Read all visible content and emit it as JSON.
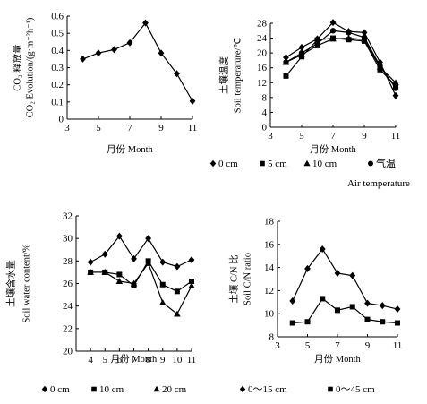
{
  "chart_data": [
    {
      "type": "line",
      "ylabel_top": "CO₂ 释放量",
      "ylabel_bottom": "CO₂ Evolution/(g·m⁻²h⁻¹)",
      "xlabel": "月份  Month",
      "xlim": [
        3,
        11
      ],
      "ylim": [
        0,
        0.6
      ],
      "xticks": [
        3,
        5,
        7,
        9,
        11
      ],
      "yticks": [
        0,
        0.1,
        0.2,
        0.3,
        0.4,
        0.5,
        0.6
      ],
      "ytick_labels": [
        "0",
        "0.1",
        "0.2",
        "0.3",
        "0.4",
        "0.5",
        "0.6"
      ],
      "legend_position": "none",
      "series": [
        {
          "name": "",
          "marker": "diamond",
          "x": [
            4,
            5,
            6,
            7,
            8,
            9,
            10,
            11
          ],
          "values": [
            0.35,
            0.385,
            0.405,
            0.445,
            0.56,
            0.385,
            0.265,
            0.105
          ]
        }
      ]
    },
    {
      "type": "line",
      "ylabel_top": "土壤温度",
      "ylabel_bottom": "Soil temperature/℃",
      "xlabel": "月份  Month",
      "xlim": [
        3,
        11
      ],
      "ylim": [
        0,
        28
      ],
      "xticks": [
        3,
        5,
        7,
        9,
        11
      ],
      "yticks": [
        0,
        4,
        8,
        12,
        16,
        20,
        24,
        28
      ],
      "ytick_labels": [
        "0",
        "4",
        "8",
        "12",
        "16",
        "20",
        "24",
        "28"
      ],
      "legend_position": "bottom",
      "series": [
        {
          "name": "0 cm",
          "marker": "diamond",
          "x": [
            4,
            5,
            6,
            7,
            8,
            9,
            10,
            11
          ],
          "values": [
            18.8,
            21.5,
            23.8,
            28.2,
            25.8,
            25.5,
            17.5,
            8.5
          ]
        },
        {
          "name": "5 cm",
          "marker": "square",
          "x": [
            4,
            5,
            6,
            7,
            8,
            9,
            10,
            11
          ],
          "values": [
            13.8,
            19.0,
            23.5,
            24.0,
            23.6,
            23.2,
            15.5,
            11.2
          ]
        },
        {
          "name": "10 cm",
          "marker": "triangle",
          "x": [
            4,
            5,
            6,
            7,
            8,
            9,
            10,
            11
          ],
          "values": [
            17.5,
            19.5,
            22.0,
            23.8,
            24.0,
            23.6,
            16.2,
            12.0
          ]
        },
        {
          "name": "气温",
          "name_line2": "Air temperature",
          "marker": "circle",
          "x": [
            4,
            5,
            6,
            7,
            8,
            9,
            10,
            11
          ],
          "values": [
            17.5,
            20.0,
            22.5,
            26.0,
            25.5,
            24.2,
            16.5,
            10.5
          ]
        }
      ]
    },
    {
      "type": "line",
      "ylabel_top": "土壤含水量",
      "ylabel_bottom": "Soil water content/%",
      "xlabel": "月份  Month",
      "xlim": [
        3,
        11
      ],
      "ylim": [
        20,
        32
      ],
      "xticks": [
        4,
        5,
        6,
        7,
        8,
        9,
        10,
        11
      ],
      "yticks": [
        20,
        22,
        24,
        26,
        28,
        30,
        32
      ],
      "ytick_labels": [
        "20",
        "22",
        "24",
        "26",
        "28",
        "30",
        "32"
      ],
      "legend_position": "bottom",
      "series": [
        {
          "name": "0 cm",
          "marker": "diamond",
          "x": [
            4,
            5,
            6,
            7,
            8,
            9,
            10,
            11
          ],
          "values": [
            27.9,
            28.6,
            30.2,
            28.2,
            30.0,
            27.9,
            27.5,
            28.1
          ]
        },
        {
          "name": "10 cm",
          "marker": "square",
          "x": [
            4,
            5,
            6,
            7,
            8,
            9,
            10,
            11
          ],
          "values": [
            27.0,
            27.0,
            26.8,
            25.8,
            28.0,
            25.9,
            25.3,
            26.2
          ]
        },
        {
          "name": "20 cm",
          "marker": "triangle",
          "x": [
            4,
            5,
            6,
            7,
            8,
            9,
            10,
            11
          ],
          "values": [
            27.0,
            27.0,
            26.2,
            26.0,
            27.8,
            24.3,
            23.3,
            25.8
          ]
        }
      ]
    },
    {
      "type": "line",
      "ylabel_top": "土壤 C/N 比",
      "ylabel_bottom": "Soil C/N ratio",
      "xlabel": "月份  Month",
      "xlim": [
        3,
        11
      ],
      "ylim": [
        8,
        18
      ],
      "xticks": [
        3,
        5,
        7,
        9,
        11
      ],
      "yticks": [
        8,
        10,
        12,
        14,
        16,
        18
      ],
      "ytick_labels": [
        "8",
        "10",
        "12",
        "14",
        "16",
        "18"
      ],
      "legend_position": "bottom",
      "series": [
        {
          "name": "0～15 cm",
          "marker": "diamond",
          "x": [
            4,
            5,
            6,
            7,
            8,
            9,
            10,
            11
          ],
          "values": [
            11.1,
            13.9,
            15.6,
            13.5,
            13.3,
            10.9,
            10.7,
            10.4
          ]
        },
        {
          "name": "0～45 cm",
          "marker": "square",
          "x": [
            4,
            5,
            6,
            7,
            8,
            9,
            10,
            11
          ],
          "values": [
            9.2,
            9.3,
            11.3,
            10.3,
            10.6,
            9.5,
            9.3,
            9.2
          ]
        }
      ]
    }
  ]
}
